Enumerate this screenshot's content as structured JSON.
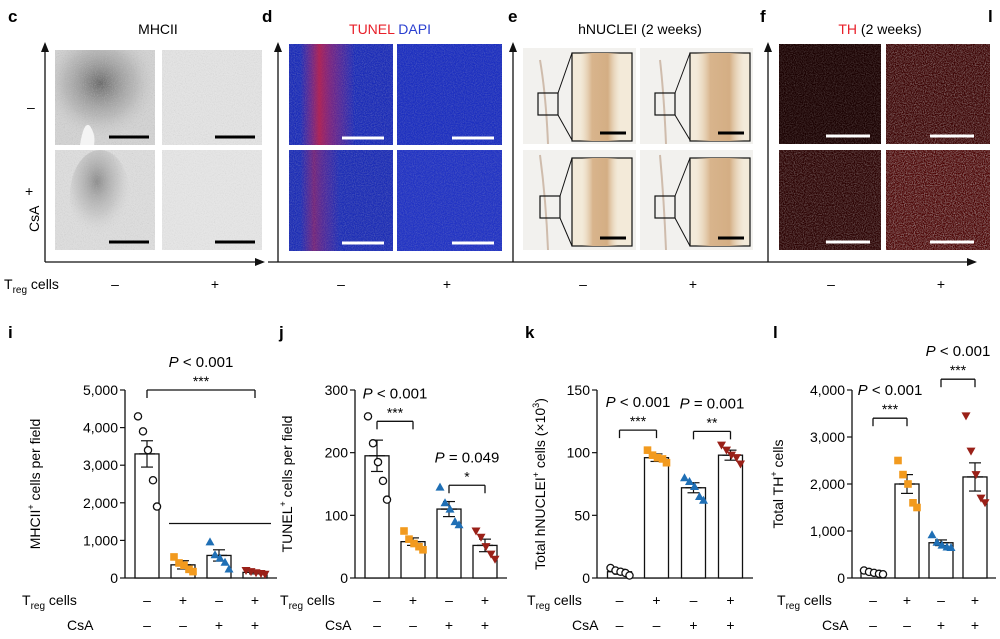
{
  "top_row": {
    "panels": [
      {
        "letter": "c",
        "title": [
          {
            "text": "MHCII",
            "color": "#222222"
          }
        ],
        "treg_minus": "–",
        "treg_plus": "+",
        "row_minus": "–",
        "row_plus": "+",
        "csa": "CsA"
      },
      {
        "letter": "d",
        "title": [
          {
            "text": "TUNEL",
            "color": "#e8202a"
          },
          {
            "text": " DAPI",
            "color": "#2a3fd0"
          }
        ],
        "treg_minus": "–",
        "treg_plus": "+"
      },
      {
        "letter": "e",
        "title": [
          {
            "text": "hNUCLEI (2 weeks)",
            "color": "#222222"
          }
        ],
        "treg_minus": "–",
        "treg_plus": "+"
      },
      {
        "letter": "f",
        "title": [
          {
            "text": "TH",
            "color": "#e8202a"
          },
          {
            "text": " (2 weeks)",
            "color": "#222222"
          }
        ],
        "treg_minus": "–",
        "treg_plus": "+"
      }
    ],
    "treg_label_main": "T",
    "treg_label_sub": "reg",
    "treg_label_rest": " cells",
    "partial_next_letter": "l"
  },
  "bottom_row": {
    "treg_label_main": "T",
    "treg_label_sub": "reg",
    "treg_label_rest": " cells",
    "csa_label": "CsA",
    "treg_signs": [
      "–",
      "+",
      "–",
      "+"
    ],
    "csa_signs": [
      "–",
      "–",
      "+",
      "+"
    ],
    "group_colors": [
      "#111111",
      "#f29a1e",
      "#1f6fb5",
      "#9a2018"
    ]
  },
  "chart_data": [
    {
      "letter": "i",
      "type": "bar",
      "ylabel_main": "MHCII",
      "ylabel_sup": "+",
      "ylabel_rest": " cells per field",
      "ylim": [
        0,
        5000
      ],
      "yticks": [
        0,
        1000,
        2000,
        3000,
        4000,
        5000
      ],
      "ytick_labels": [
        "0",
        "1,000",
        "2,000",
        "3,000",
        "4,000",
        "5,000"
      ],
      "means": [
        3300,
        350,
        600,
        150
      ],
      "sems": [
        350,
        110,
        150,
        40
      ],
      "points": [
        [
          4300,
          3900,
          3400,
          2600,
          1900
        ],
        [
          560,
          400,
          340,
          230,
          170
        ],
        [
          960,
          620,
          530,
          420,
          240
        ],
        [
          200,
          170,
          140,
          120,
          100
        ]
      ],
      "annotations": [
        {
          "type": "bracket",
          "from": 0,
          "to": 3,
          "y": 5000,
          "p": "P",
          "op": " < 0.001",
          "stars": "***"
        },
        {
          "type": "line",
          "from": 1,
          "to": 3,
          "y": 1450
        }
      ]
    },
    {
      "letter": "j",
      "type": "bar",
      "ylabel_main": "TUNEL",
      "ylabel_sup": "+",
      "ylabel_rest": " cells per field",
      "ylim": [
        0,
        300
      ],
      "yticks": [
        0,
        100,
        200,
        300
      ],
      "ytick_labels": [
        "0",
        "100",
        "200",
        "300"
      ],
      "means": [
        195,
        58,
        110,
        52
      ],
      "sems": [
        25,
        6,
        12,
        10
      ],
      "points": [
        [
          258,
          215,
          185,
          155,
          125
        ],
        [
          75,
          62,
          55,
          50,
          45
        ],
        [
          145,
          120,
          110,
          90,
          85
        ],
        [
          75,
          65,
          50,
          38,
          30
        ]
      ],
      "annotations": [
        {
          "type": "bracket",
          "from": 0,
          "to": 1,
          "y": 250,
          "p": "P",
          "op": " < 0.001",
          "stars": "***"
        },
        {
          "type": "bracket",
          "from": 2,
          "to": 3,
          "y": 148,
          "p": "P",
          "op": " = 0.049",
          "stars": "*"
        }
      ]
    },
    {
      "letter": "k",
      "type": "bar",
      "ylabel_main": "Total hNUCLEI",
      "ylabel_sup": "+",
      "ylabel_rest": " cells (×10",
      "ylabel_sup2": "3",
      "ylabel_end": ")",
      "ylim": [
        0,
        150
      ],
      "yticks": [
        0,
        50,
        100,
        150
      ],
      "ytick_labels": [
        "0",
        "50",
        "100",
        "150"
      ],
      "means": [
        5,
        96,
        72,
        98
      ],
      "sems": [
        2,
        3,
        4,
        4
      ],
      "points": [
        [
          8,
          6,
          5,
          4,
          2
        ],
        [
          102,
          98,
          96,
          95,
          92
        ],
        [
          80,
          77,
          73,
          65,
          62
        ],
        [
          106,
          102,
          98,
          96,
          91
        ]
      ],
      "annotations": [
        {
          "type": "bracket",
          "from": 0,
          "to": 1,
          "y": 118,
          "p": "P",
          "op": " < 0.001",
          "stars": "***"
        },
        {
          "type": "bracket",
          "from": 2,
          "to": 3,
          "y": 117,
          "p": "P",
          "op": " = 0.001",
          "stars": "**"
        }
      ]
    },
    {
      "letter": "l",
      "type": "bar",
      "ylabel_main": "Total TH",
      "ylabel_sup": "+",
      "ylabel_rest": " cells",
      "ylim": [
        0,
        4000
      ],
      "yticks": [
        0,
        1000,
        2000,
        3000,
        4000
      ],
      "ytick_labels": [
        "0",
        "1,000",
        "2,000",
        "3,000",
        "4,000"
      ],
      "means": [
        120,
        2000,
        750,
        2150
      ],
      "sems": [
        25,
        200,
        60,
        300
      ],
      "points": [
        [
          160,
          130,
          110,
          90,
          80
        ],
        [
          2500,
          2200,
          2000,
          1600,
          1500
        ],
        [
          920,
          760,
          700,
          660,
          650
        ],
        [
          3450,
          2700,
          2200,
          1700,
          1600
        ]
      ],
      "annotations": [
        {
          "type": "bracket",
          "from": 0,
          "to": 1,
          "y": 3400,
          "p": "P",
          "op": " < 0.001",
          "stars": "***"
        },
        {
          "type": "bracket",
          "from": 2,
          "to": 3,
          "y": 4230,
          "p": "P",
          "op": " < 0.001",
          "stars": "***"
        }
      ]
    }
  ]
}
